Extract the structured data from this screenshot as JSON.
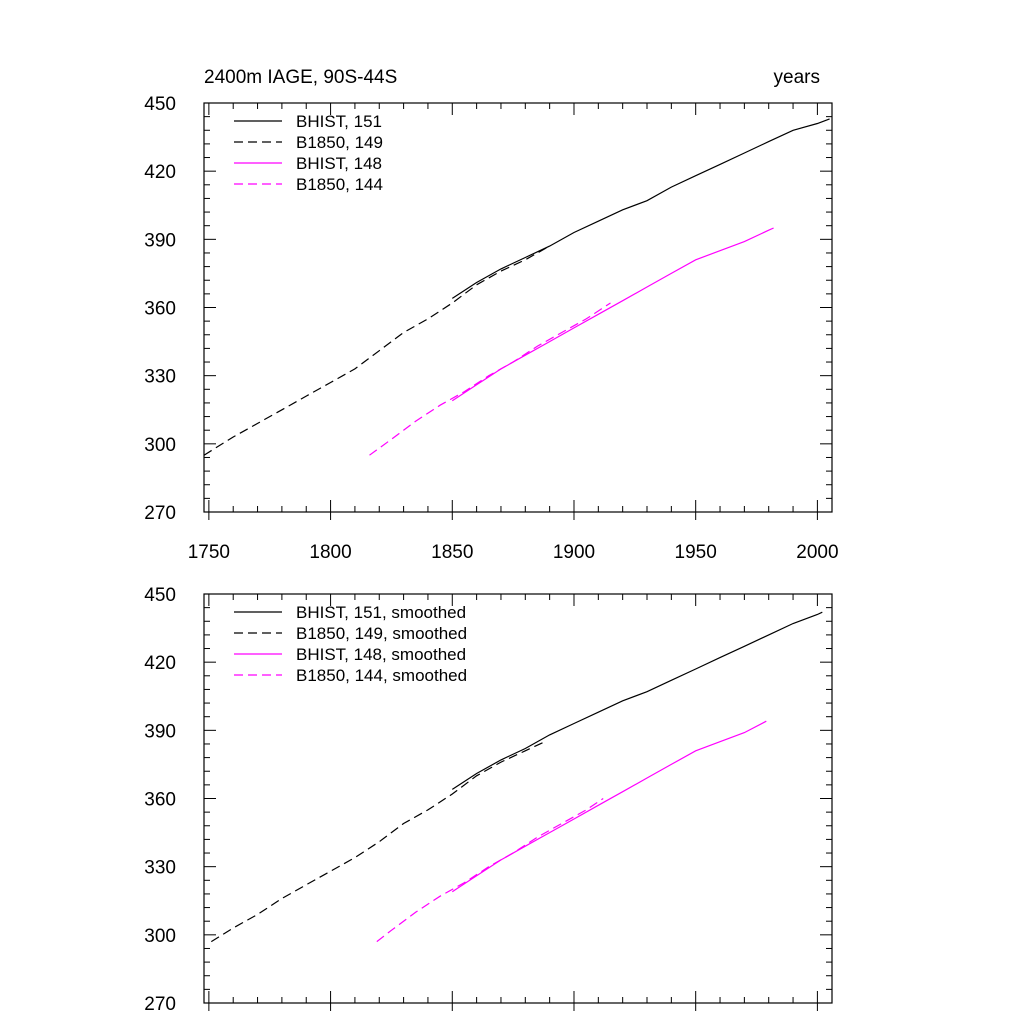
{
  "figure": {
    "title_left": "2400m IAGE, 90S-44S",
    "title_right": "years"
  },
  "chart_data": [
    {
      "type": "line",
      "xlim": [
        1748,
        2006
      ],
      "ylim": [
        270,
        450
      ],
      "xticks": [
        1750,
        1800,
        1850,
        1900,
        1950,
        2000
      ],
      "xtick_labels": [
        "1750",
        "1800",
        "1850",
        "1900",
        "1950",
        "2000"
      ],
      "yticks": [
        270,
        300,
        330,
        360,
        390,
        420,
        450
      ],
      "ytick_labels": [
        "270",
        "300",
        "330",
        "360",
        "390",
        "420",
        "450"
      ],
      "legend_position": "top-left",
      "grid": false,
      "series": [
        {
          "name": "BHIST, 151",
          "color": "#000000",
          "dash": "solid",
          "x": [
            1850,
            1860,
            1870,
            1880,
            1890,
            1900,
            1910,
            1920,
            1930,
            1940,
            1950,
            1960,
            1970,
            1980,
            1990,
            2000,
            2005
          ],
          "y": [
            364,
            371,
            377,
            382,
            387,
            393,
            398,
            403,
            407,
            413,
            418,
            423,
            428,
            433,
            438,
            441,
            443
          ]
        },
        {
          "name": "B1850, 149",
          "color": "#000000",
          "dash": "dashed",
          "x": [
            1748,
            1760,
            1770,
            1780,
            1790,
            1800,
            1810,
            1820,
            1830,
            1840,
            1850,
            1860,
            1870,
            1880,
            1890
          ],
          "y": [
            295,
            303,
            309,
            315,
            321,
            327,
            333,
            341,
            349,
            355,
            362,
            370,
            376,
            381,
            387
          ]
        },
        {
          "name": "BHIST, 148",
          "color": "#ff00ff",
          "dash": "solid",
          "x": [
            1850,
            1860,
            1870,
            1880,
            1890,
            1900,
            1910,
            1920,
            1930,
            1940,
            1950,
            1960,
            1970,
            1980,
            1982
          ],
          "y": [
            319,
            326,
            333,
            339,
            345,
            351,
            357,
            363,
            369,
            375,
            381,
            385,
            389,
            394,
            395
          ]
        },
        {
          "name": "B1850, 144",
          "color": "#ff00ff",
          "dash": "dashed",
          "x": [
            1816,
            1825,
            1835,
            1845,
            1855,
            1865,
            1875,
            1885,
            1895,
            1905,
            1915
          ],
          "y": [
            295,
            302,
            310,
            317,
            323,
            330,
            336,
            343,
            349,
            355,
            362
          ]
        }
      ]
    },
    {
      "type": "line",
      "xlim": [
        1748,
        2006
      ],
      "ylim": [
        270,
        450
      ],
      "xticks": [
        1750,
        1800,
        1850,
        1900,
        1950,
        2000
      ],
      "xtick_labels": [],
      "yticks": [
        270,
        300,
        330,
        360,
        390,
        420,
        450
      ],
      "ytick_labels": [
        "270",
        "300",
        "330",
        "360",
        "390",
        "420",
        "450"
      ],
      "legend_position": "top-left",
      "grid": false,
      "series": [
        {
          "name": "BHIST, 151, smoothed",
          "color": "#000000",
          "dash": "solid",
          "x": [
            1850,
            1860,
            1870,
            1880,
            1890,
            1900,
            1910,
            1920,
            1930,
            1940,
            1950,
            1960,
            1970,
            1980,
            1990,
            2000,
            2002
          ],
          "y": [
            364,
            371,
            377,
            382,
            388,
            393,
            398,
            403,
            407,
            412,
            417,
            422,
            427,
            432,
            437,
            441,
            442
          ]
        },
        {
          "name": "B1850, 149, smoothed",
          "color": "#000000",
          "dash": "dashed",
          "x": [
            1751,
            1760,
            1770,
            1780,
            1790,
            1800,
            1810,
            1820,
            1830,
            1840,
            1850,
            1860,
            1870,
            1880,
            1888
          ],
          "y": [
            297,
            303,
            309,
            316,
            322,
            328,
            334,
            341,
            349,
            355,
            362,
            370,
            376,
            381,
            385
          ]
        },
        {
          "name": "BHIST, 148, smoothed",
          "color": "#ff00ff",
          "dash": "solid",
          "x": [
            1850,
            1860,
            1870,
            1880,
            1890,
            1900,
            1910,
            1920,
            1930,
            1940,
            1950,
            1960,
            1970,
            1979
          ],
          "y": [
            319,
            326,
            333,
            339,
            345,
            351,
            357,
            363,
            369,
            375,
            381,
            385,
            389,
            394
          ]
        },
        {
          "name": "B1850, 144, smoothed",
          "color": "#ff00ff",
          "dash": "dashed",
          "x": [
            1819,
            1825,
            1835,
            1845,
            1855,
            1865,
            1875,
            1885,
            1895,
            1905,
            1912
          ],
          "y": [
            297,
            302,
            310,
            317,
            323,
            330,
            336,
            343,
            349,
            355,
            360
          ]
        }
      ]
    }
  ]
}
